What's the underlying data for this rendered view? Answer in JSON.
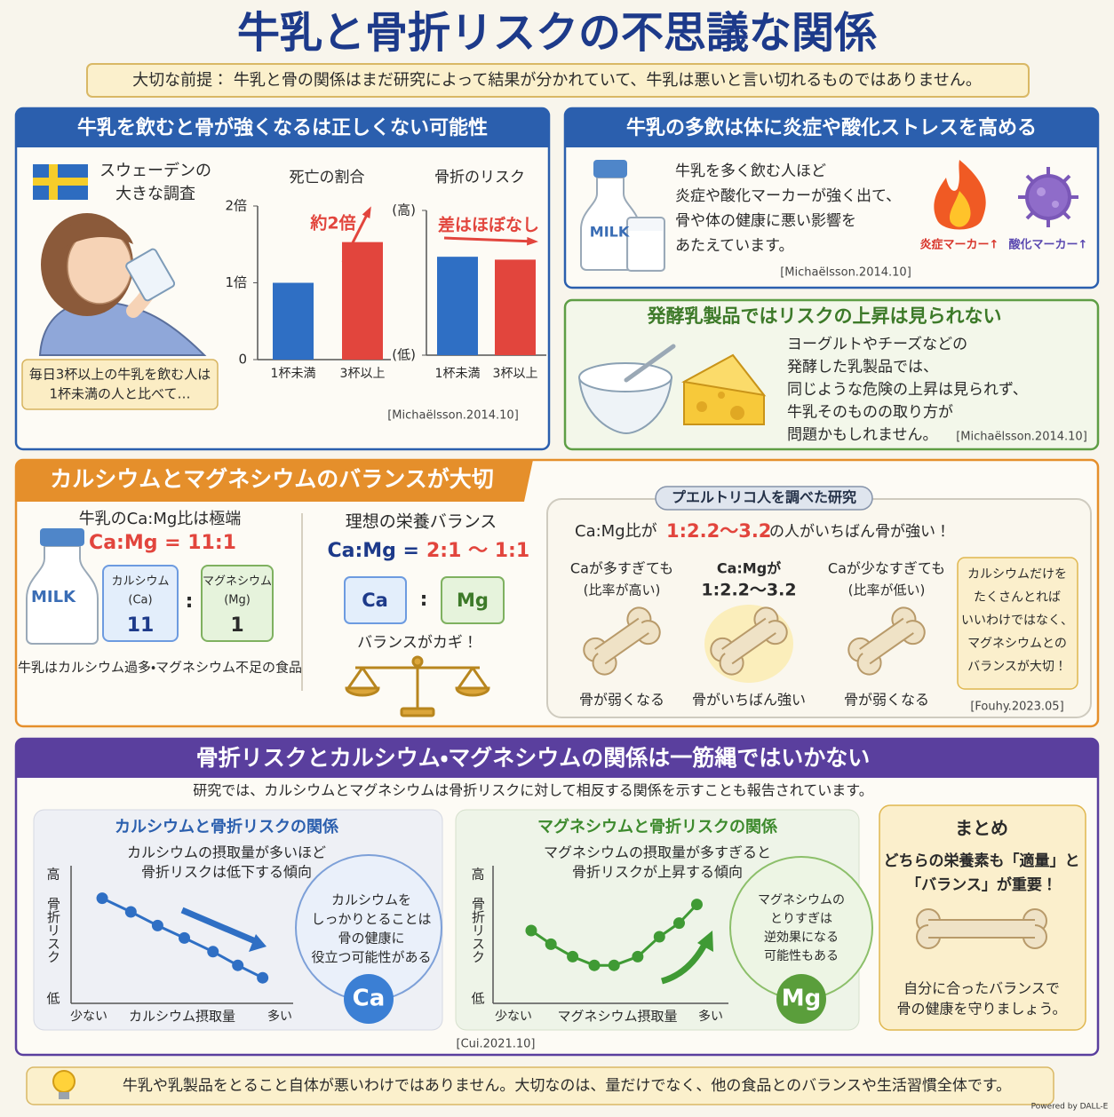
{
  "header": {
    "title": "牛乳と骨折リスクの不思議な関係",
    "premise": "大切な前提： 牛乳と骨の関係はまだ研究によって結果が分かれていて、牛乳は悪いと言い切れるものではありません。"
  },
  "sweden_study": {
    "heading": "牛乳を飲むと骨が強くなるは正しくない可能性",
    "label": [
      "スウェーデンの",
      "大きな調査"
    ],
    "caption": [
      "毎日3杯以上の牛乳を飲む人は",
      "1杯未満の人と比べて…"
    ],
    "source": "[Michaëlsson.2014.10]"
  },
  "inflammation": {
    "heading": "牛乳の多飲は体に炎症や酸化ストレスを高める",
    "milk_label": "MILK",
    "body": [
      "牛乳を多く飲む人ほど",
      "炎症や酸化マーカーが強く出て、",
      "骨や体の健康に悪い影響を",
      "あたえています。"
    ],
    "markers": [
      "炎症マーカー↑",
      "酸化マーカー↑"
    ],
    "source": "[Michaëlsson.2014.10]"
  },
  "fermented": {
    "heading": "発酵乳製品ではリスクの上昇は見られない",
    "body": [
      "ヨーグルトやチーズなどの",
      "発酵した乳製品では、",
      "同じような危険の上昇は見られず、",
      "牛乳そのものの取り方が",
      "問題かもしれません。"
    ],
    "source": "[Michaëlsson.2014.10]"
  },
  "balance": {
    "heading": "カルシウムとマグネシウムのバランスが大切",
    "milk_ratio": {
      "title": "牛乳のCa:Mg比は極端",
      "ratio": "Ca:Mg = 11:1",
      "milk_label": "MILK",
      "ca_name": [
        "カルシウム",
        "(Ca)"
      ],
      "ca_value": 11,
      "colon": ":",
      "mg_name": [
        "マグネシウム",
        "(Mg)"
      ],
      "mg_value": 1,
      "caption": "牛乳はカルシウム過多・マグネシウム不足の食品"
    },
    "ideal": {
      "title": "理想の栄養バランス",
      "ratio_prefix": "Ca:Mg =",
      "ratio": "2:1 〜 1:1",
      "ca": "Ca",
      "colon": ":",
      "mg": "Mg",
      "caption": "バランスがカギ！"
    },
    "puerto_rico": {
      "tag": "プエルトリコ人を調べた研究",
      "finding": [
        "Ca:Mg比が",
        "1:2.2〜3.2",
        "の人がいちばん骨が強い！"
      ],
      "cases": [
        {
          "condition": [
            "Caが多すぎても",
            "(比率が高い)"
          ],
          "result": "骨が弱くなる"
        },
        {
          "condition": [
            "Ca:Mgが",
            "1:2.2〜3.2"
          ],
          "result": "骨がいちばん強い"
        },
        {
          "condition": [
            "Caが少なすぎても",
            "(比率が低い)"
          ],
          "result": "骨が弱くなる"
        }
      ],
      "note": [
        "カルシウムだけを",
        "たくさんとれば",
        "いいわけではなく、",
        "マグネシウムとの",
        "バランスが大切！"
      ],
      "source": "[Fouhy.2023.05]"
    }
  },
  "fracture": {
    "heading": "骨折リスクとカルシウム・マグネシウムの関係は一筋縄ではいかない",
    "intro": "研究では、カルシウムとマグネシウムは骨折リスクに対して相反する関係を示すことも報告されています。",
    "ca_callout": [
      "カルシウムを",
      "しっかりとることは",
      "骨の健康に",
      "役立つ可能性がある"
    ],
    "ca_badge": "Ca",
    "mg_callout": [
      "マグネシウムの",
      "とりすぎは",
      "逆効果になる",
      "可能性もある"
    ],
    "mg_badge": "Mg",
    "source": "[Cui.2021.10]",
    "summary": {
      "title": "まとめ",
      "lead": [
        "どちらの栄養素も「適量」と",
        "「バランス」が重要！"
      ],
      "closing": [
        "自分に合ったバランスで",
        "骨の健康を守りましょう。"
      ]
    }
  },
  "footer": {
    "message": "牛乳や乳製品をとること自体が悪いわけではありません。大切なのは、量だけでなく、他の食品とのバランスや生活習慣全体です。",
    "credit": "Powered by DALL-E"
  },
  "chart_data": [
    {
      "type": "bar",
      "title": "死亡の割合",
      "categories": [
        "1杯未満",
        "3杯以上"
      ],
      "values": [
        1,
        1.53
      ],
      "colors": [
        "#2f6fc4",
        "#e2453d"
      ],
      "ylim": [
        0,
        2
      ],
      "yticks": [
        0,
        {
          "value": 1,
          "label": "1倍"
        },
        {
          "value": 2,
          "label": "2倍"
        }
      ],
      "annotation": "約2倍"
    },
    {
      "type": "bar",
      "title": "骨折のリスク",
      "categories": [
        "1杯未満",
        "3杯以上"
      ],
      "values": [
        0.68,
        0.66
      ],
      "colors": [
        "#2f6fc4",
        "#e2453d"
      ],
      "ylim": [
        0,
        1
      ],
      "yticks": [
        {
          "value": 0,
          "label": "(低)"
        },
        {
          "value": 1,
          "label": "(高)"
        }
      ],
      "annotation": "差はほぼなし"
    },
    {
      "type": "line",
      "title": "カルシウムと骨折リスクの関係",
      "subtitle": [
        "カルシウムの摂取量が多いほど",
        "骨折リスクは低下する傾向"
      ],
      "x_label": "カルシウム摂取量",
      "y_label": "骨折リスク",
      "color": "#2f6fc4",
      "x": [
        0.07,
        0.22,
        0.36,
        0.5,
        0.65,
        0.78,
        0.91
      ],
      "values": [
        0.81,
        0.7,
        0.59,
        0.49,
        0.38,
        0.27,
        0.17
      ],
      "xlim": [
        0,
        1
      ],
      "xticks": [
        {
          "value": 0,
          "label": "少ない"
        },
        {
          "value": 1,
          "label": "多い"
        }
      ],
      "ylim": [
        0,
        1
      ],
      "yticks": [
        {
          "value": 0,
          "label": "低"
        },
        {
          "value": 1,
          "label": "高"
        }
      ]
    },
    {
      "type": "line",
      "title": "マグネシウムと骨折リスクの関係",
      "subtitle": [
        "マグネシウムの摂取量が多すぎると",
        "骨折リスクが上昇する傾向"
      ],
      "x_label": "マグネシウム摂取量",
      "y_label": "骨折リスク",
      "color": "#3f9a34",
      "x": [
        0.09,
        0.19,
        0.3,
        0.41,
        0.51,
        0.63,
        0.74,
        0.84,
        0.93
      ],
      "values": [
        0.55,
        0.44,
        0.34,
        0.27,
        0.27,
        0.34,
        0.5,
        0.61,
        0.76
      ],
      "xlim": [
        0,
        1
      ],
      "xticks": [
        {
          "value": 0,
          "label": "少ない"
        },
        {
          "value": 1,
          "label": "多い"
        }
      ],
      "ylim": [
        0,
        1
      ],
      "yticks": [
        {
          "value": 0,
          "label": "低"
        },
        {
          "value": 1,
          "label": "高"
        }
      ]
    }
  ]
}
